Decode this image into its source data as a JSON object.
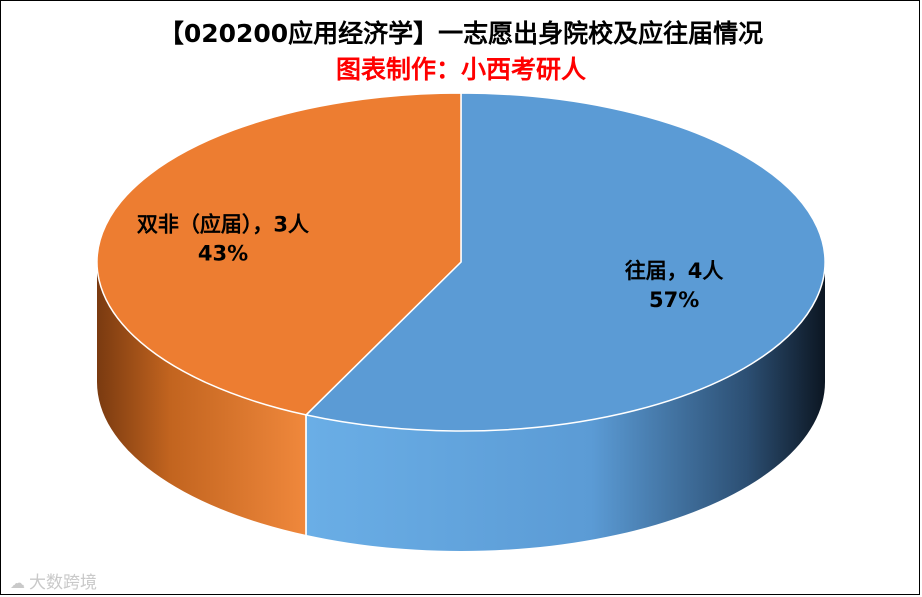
{
  "chart_data": {
    "type": "pie",
    "title": "【020200应用经济学】一志愿出身院校及应往届情况",
    "subtitle": "图表制作：小西考研人",
    "slices": [
      {
        "label": "往届",
        "count": 4,
        "count_text": "4人",
        "percent_text": "57%",
        "value": 57,
        "color": "#5b9bd5"
      },
      {
        "label": "双非（应届）",
        "count": 3,
        "count_text": "3人",
        "percent_text": "43%",
        "value": 43,
        "color": "#ed7d31"
      }
    ],
    "legend": "none"
  },
  "colors": {
    "subtitle": "#ff0000",
    "blue_top": "#5b9bd5",
    "orange_top": "#ed7d31",
    "text": "#000000"
  },
  "watermark": {
    "text": "大数跨境",
    "icon": "cloud-logo-icon"
  }
}
